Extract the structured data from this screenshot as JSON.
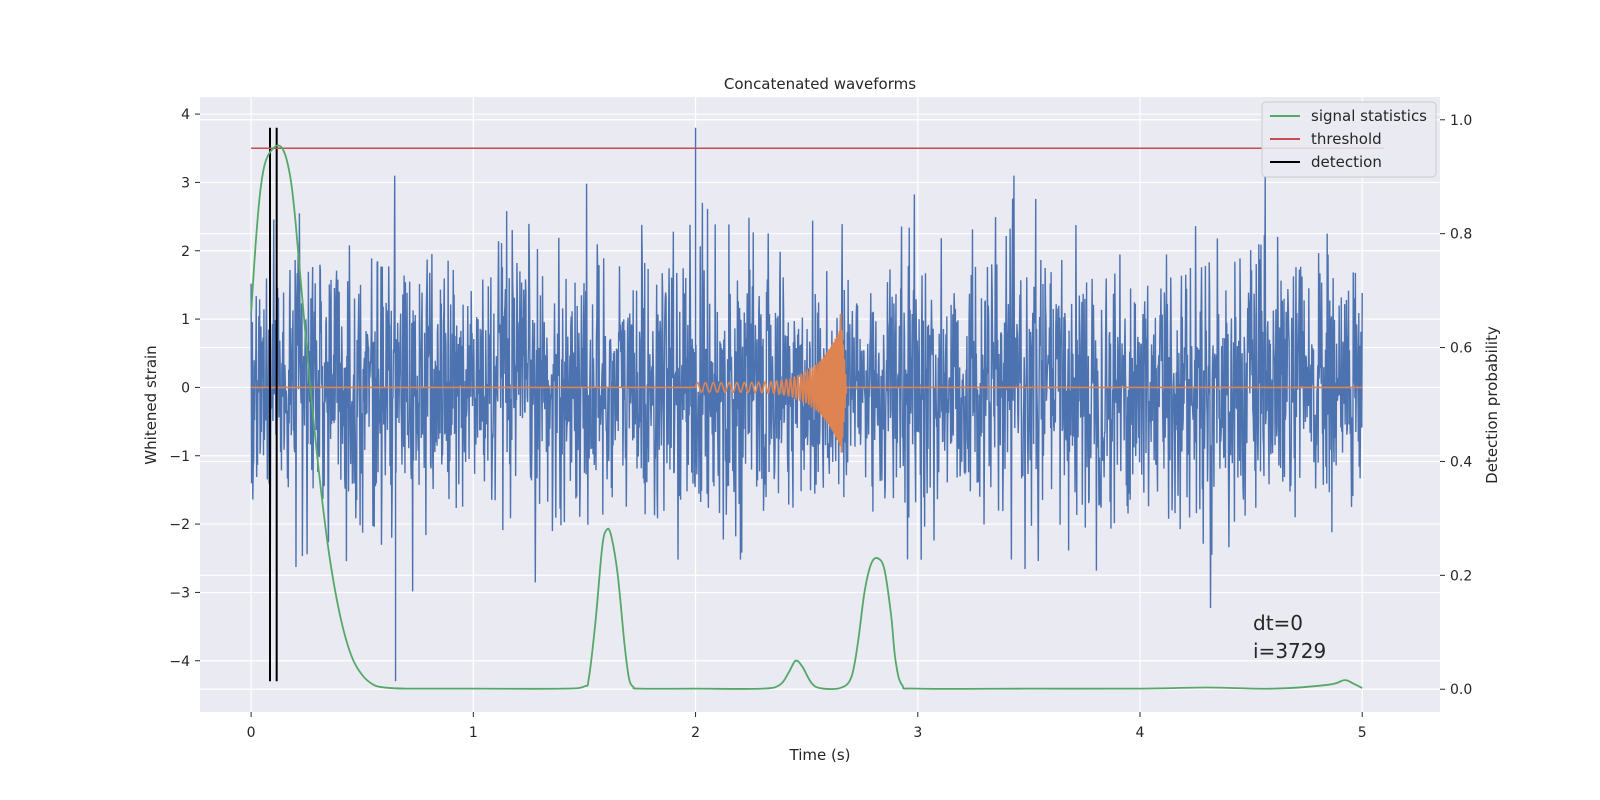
{
  "chart_data": {
    "type": "line",
    "title": "Concatenated waveforms",
    "xlabel": "Time (s)",
    "ylabel_left": "Whitened strain",
    "ylabel_right": "Detection probability",
    "xlim": [
      -0.23,
      5.35
    ],
    "ylim_left": [
      -4.75,
      4.25
    ],
    "ylim_right": [
      -0.04,
      1.04
    ],
    "x_ticks": [
      "0",
      "1",
      "2",
      "3",
      "4",
      "5"
    ],
    "y_ticks_left": [
      "−4",
      "−3",
      "−2",
      "−1",
      "0",
      "1",
      "2",
      "3",
      "4"
    ],
    "y_ticks_right": [
      "0.0",
      "0.2",
      "0.4",
      "0.6",
      "0.8",
      "1.0"
    ],
    "grid": true,
    "legend_position": "top-right",
    "series": [
      {
        "name": "signal statistics",
        "axis": "right",
        "color": "#55a868",
        "x": [
          0,
          0.02,
          0.04,
          0.06,
          0.08,
          0.1,
          0.12,
          0.14,
          0.16,
          0.18,
          0.2,
          0.25,
          0.3,
          0.35,
          0.4,
          0.45,
          0.5,
          0.55,
          0.6,
          0.7,
          1.0,
          1.4,
          1.5,
          1.52,
          1.55,
          1.58,
          1.6,
          1.62,
          1.65,
          1.68,
          1.7,
          1.72,
          1.75,
          2.0,
          2.3,
          2.38,
          2.42,
          2.45,
          2.48,
          2.52,
          2.56,
          2.65,
          2.7,
          2.73,
          2.76,
          2.79,
          2.82,
          2.85,
          2.88,
          2.9,
          2.93,
          3.0,
          3.5,
          4.0,
          4.3,
          4.6,
          4.85,
          4.92,
          4.96,
          5.0
        ],
        "y": [
          0.66,
          0.78,
          0.87,
          0.92,
          0.94,
          0.95,
          0.955,
          0.95,
          0.93,
          0.89,
          0.82,
          0.6,
          0.4,
          0.24,
          0.13,
          0.06,
          0.025,
          0.008,
          0.003,
          0.001,
          0.001,
          0.001,
          0.005,
          0.02,
          0.12,
          0.25,
          0.28,
          0.27,
          0.2,
          0.08,
          0.02,
          0.004,
          0.001,
          0.001,
          0.001,
          0.008,
          0.03,
          0.05,
          0.04,
          0.012,
          0.002,
          0.002,
          0.02,
          0.08,
          0.17,
          0.22,
          0.23,
          0.21,
          0.13,
          0.05,
          0.007,
          0.001,
          0.001,
          0.001,
          0.003,
          0.001,
          0.008,
          0.016,
          0.01,
          0.002
        ]
      },
      {
        "name": "threshold",
        "axis": "right",
        "color": "#c44e52",
        "x": [
          0,
          5.1
        ],
        "y": [
          0.95,
          0.95
        ]
      },
      {
        "name": "detection",
        "axis": "left",
        "color": "#000000",
        "x": [
          0.085,
          0.115
        ],
        "y": [
          -4.3,
          3.8
        ]
      },
      {
        "name": "",
        "axis": "left",
        "color": "#4c72b0",
        "description": "whitened noise strain, approx Gaussian with std ~0.9 and spikes up to 3.8",
        "x_range": [
          0,
          5
        ],
        "y_range": [
          -4.3,
          3.8
        ],
        "peaks": [
          {
            "x": 2.0,
            "y": 3.8
          },
          {
            "x": 0.65,
            "y": -4.3
          }
        ]
      },
      {
        "name": "",
        "axis": "left",
        "color": "#dd8452",
        "description": "injected chirp waveform from t=2.0 to t=2.68, peak amplitude ~1.1, zero elsewhere",
        "x_range": [
          0,
          5
        ],
        "chirp_start": 2.0,
        "chirp_end": 2.68,
        "peak_amplitude": 1.1
      }
    ],
    "annotations": [
      "dt=0",
      "i=3729"
    ]
  },
  "legend": {
    "items": [
      {
        "label": "signal statistics",
        "color": "#55a868"
      },
      {
        "label": "threshold",
        "color": "#c44e52"
      },
      {
        "label": "detection",
        "color": "#000000"
      }
    ]
  }
}
